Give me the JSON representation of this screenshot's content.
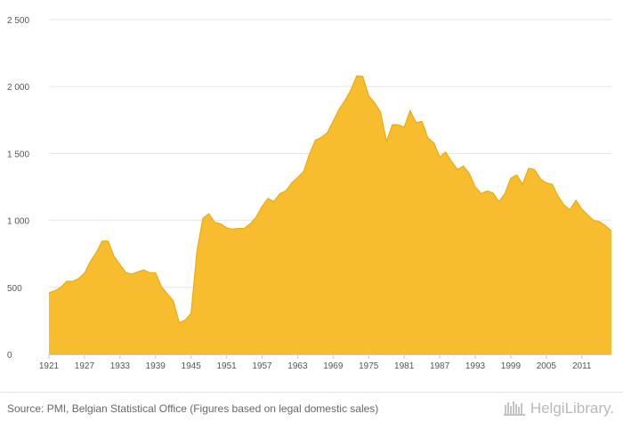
{
  "chart_data": {
    "type": "area",
    "title": "",
    "xlabel": "",
    "ylabel": "",
    "ylim": [
      0,
      2500
    ],
    "yticks": [
      0,
      500,
      1000,
      1500,
      2000,
      2500
    ],
    "ytick_labels": [
      "0",
      "500",
      "1 000",
      "1 500",
      "2 000",
      "2 500"
    ],
    "xticks": [
      1921,
      1927,
      1933,
      1939,
      1945,
      1951,
      1957,
      1963,
      1969,
      1975,
      1981,
      1987,
      1993,
      1999,
      2005,
      2011
    ],
    "xlim": [
      1921,
      2016
    ],
    "grid": true,
    "legend": "none",
    "colors": {
      "fill": "#f8bd2f",
      "stroke": "#f0ab00"
    },
    "x": [
      1921,
      1922,
      1923,
      1924,
      1925,
      1926,
      1927,
      1928,
      1929,
      1930,
      1931,
      1932,
      1933,
      1934,
      1935,
      1936,
      1937,
      1938,
      1939,
      1940,
      1941,
      1942,
      1943,
      1944,
      1945,
      1946,
      1947,
      1948,
      1949,
      1950,
      1951,
      1952,
      1953,
      1954,
      1955,
      1956,
      1957,
      1958,
      1959,
      1960,
      1961,
      1962,
      1963,
      1964,
      1965,
      1966,
      1967,
      1968,
      1969,
      1970,
      1971,
      1972,
      1973,
      1974,
      1975,
      1976,
      1977,
      1978,
      1979,
      1980,
      1981,
      1982,
      1983,
      1984,
      1985,
      1986,
      1987,
      1988,
      1989,
      1990,
      1991,
      1992,
      1993,
      1994,
      1995,
      1996,
      1997,
      1998,
      1999,
      2000,
      2001,
      2002,
      2003,
      2004,
      2005,
      2006,
      2007,
      2008,
      2009,
      2010,
      2011,
      2012,
      2013,
      2014,
      2015,
      2016
    ],
    "y": [
      460,
      475,
      500,
      545,
      545,
      565,
      605,
      695,
      760,
      845,
      845,
      730,
      670,
      610,
      600,
      615,
      630,
      610,
      610,
      505,
      450,
      400,
      235,
      255,
      305,
      770,
      1015,
      1050,
      985,
      975,
      945,
      935,
      940,
      940,
      975,
      1025,
      1105,
      1165,
      1140,
      1200,
      1220,
      1280,
      1320,
      1365,
      1495,
      1600,
      1620,
      1655,
      1740,
      1830,
      1895,
      1975,
      2080,
      2075,
      1930,
      1880,
      1810,
      1590,
      1715,
      1715,
      1695,
      1820,
      1730,
      1740,
      1615,
      1580,
      1475,
      1510,
      1440,
      1380,
      1405,
      1350,
      1250,
      1200,
      1220,
      1205,
      1140,
      1200,
      1315,
      1340,
      1270,
      1390,
      1380,
      1310,
      1280,
      1270,
      1180,
      1115,
      1080,
      1150,
      1085,
      1040,
      1000,
      990,
      960,
      920
    ]
  },
  "footer": {
    "source": "Source: PMI, Belgian Statistical Office (Figures based on legal domestic sales)",
    "logo_text": "HelgiLibrary."
  }
}
